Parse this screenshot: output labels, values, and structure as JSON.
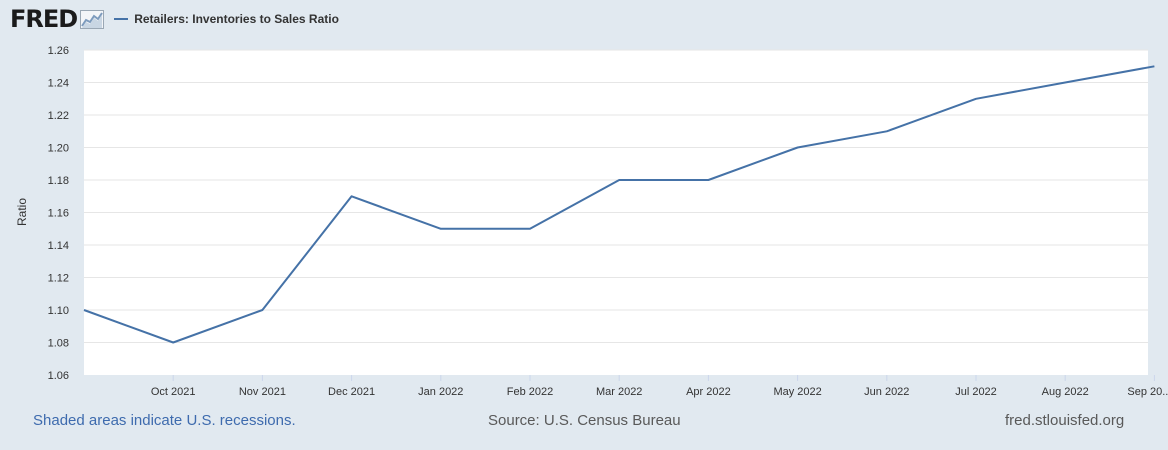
{
  "logo": {
    "text": "FRED",
    "icon": "fred-chart-icon"
  },
  "legend": {
    "label": "Retailers: Inventories to Sales Ratio"
  },
  "footer": {
    "recessions_note": "Shaded areas indicate U.S. recessions.",
    "source": "Source: U.S. Census Bureau",
    "site": "fred.stlouisfed.org"
  },
  "chart_data": {
    "type": "line",
    "title": "",
    "xlabel": "",
    "ylabel": "Ratio",
    "ylim": [
      1.06,
      1.26
    ],
    "yticks": [
      1.06,
      1.08,
      1.1,
      1.12,
      1.14,
      1.16,
      1.18,
      1.2,
      1.22,
      1.24,
      1.26
    ],
    "ytick_labels": [
      "1.06",
      "1.08",
      "1.10",
      "1.12",
      "1.14",
      "1.16",
      "1.18",
      "1.20",
      "1.22",
      "1.24",
      "1.26"
    ],
    "x": [
      "2021-09",
      "2021-10",
      "2021-11",
      "2021-12",
      "2022-01",
      "2022-02",
      "2022-03",
      "2022-04",
      "2022-05",
      "2022-06",
      "2022-07",
      "2022-08",
      "2022-09"
    ],
    "xtick_labels": [
      "Oct 2021",
      "Nov 2021",
      "Dec 2021",
      "Jan 2022",
      "Feb 2022",
      "Mar 2022",
      "Apr 2022",
      "May 2022",
      "Jun 2022",
      "Jul 2022",
      "Aug 2022",
      "Sep 20..."
    ],
    "grid": true,
    "legend_position": "top-left",
    "series": [
      {
        "name": "Retailers: Inventories to Sales Ratio",
        "color": "#4572a7",
        "values": [
          1.1,
          1.08,
          1.1,
          1.17,
          1.15,
          1.15,
          1.18,
          1.18,
          1.2,
          1.21,
          1.23,
          1.24,
          1.25
        ]
      }
    ]
  }
}
